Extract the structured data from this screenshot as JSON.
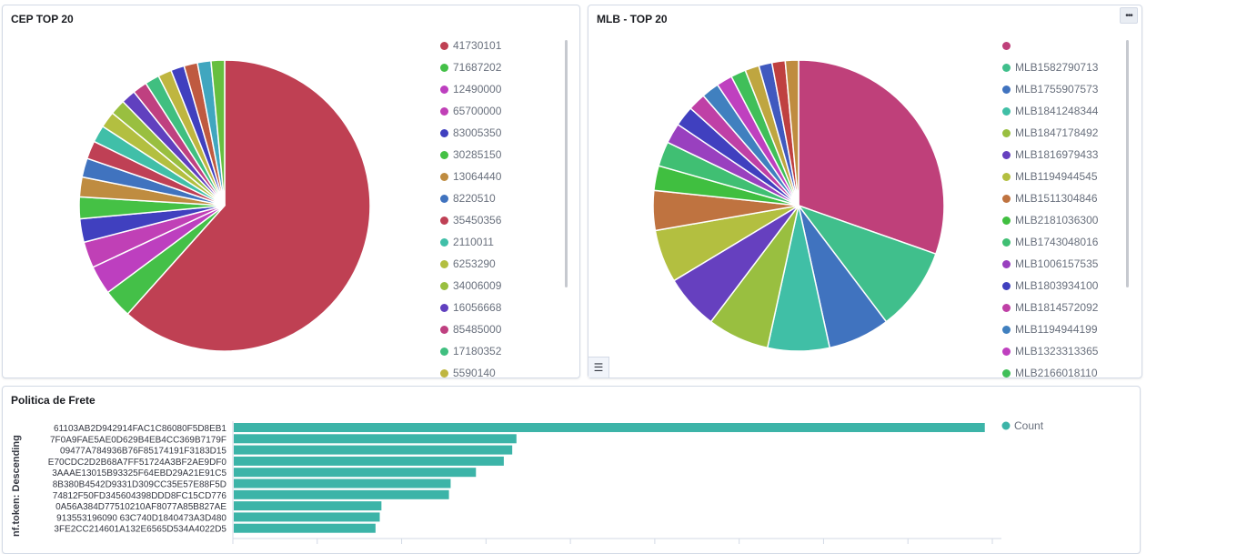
{
  "panels": {
    "cep": {
      "title": "CEP TOP 20",
      "legend": [
        {
          "label": "41730101",
          "color": "#bf4053"
        },
        {
          "label": "71687202",
          "color": "#44c048"
        },
        {
          "label": "12490000",
          "color": "#bd3fbf"
        },
        {
          "label": "65700000",
          "color": "#c040b6"
        },
        {
          "label": "83005350",
          "color": "#4040bf"
        },
        {
          "label": "30285150",
          "color": "#45c145"
        },
        {
          "label": "13064440",
          "color": "#bf8c40"
        },
        {
          "label": "8220510",
          "color": "#4073bf"
        },
        {
          "label": "35450356",
          "color": "#bf4055"
        },
        {
          "label": "2110011",
          "color": "#40bfa8"
        },
        {
          "label": "6253290",
          "color": "#b3bf40"
        },
        {
          "label": "34006009",
          "color": "#99bf40"
        },
        {
          "label": "16056668",
          "color": "#6040bf"
        },
        {
          "label": "85485000",
          "color": "#bf4080"
        },
        {
          "label": "17180352",
          "color": "#40bf80"
        },
        {
          "label": "5590140",
          "color": "#bfb640"
        }
      ],
      "slices": [
        {
          "value": 61.5,
          "color": "#bf4053"
        },
        {
          "value": 3.2,
          "color": "#44c048"
        },
        {
          "value": 3.2,
          "color": "#bd3fbf"
        },
        {
          "value": 2.9,
          "color": "#c040b6"
        },
        {
          "value": 2.6,
          "color": "#4040bf"
        },
        {
          "value": 2.4,
          "color": "#45c145"
        },
        {
          "value": 2.2,
          "color": "#bf8c40"
        },
        {
          "value": 2.1,
          "color": "#4073bf"
        },
        {
          "value": 2.0,
          "color": "#bf4055"
        },
        {
          "value": 1.9,
          "color": "#40bfa8"
        },
        {
          "value": 1.8,
          "color": "#b3bf40"
        },
        {
          "value": 1.7,
          "color": "#99bf40"
        },
        {
          "value": 1.6,
          "color": "#6040bf"
        },
        {
          "value": 1.6,
          "color": "#bf4080"
        },
        {
          "value": 1.6,
          "color": "#40bf80"
        },
        {
          "value": 1.5,
          "color": "#bfb640"
        },
        {
          "value": 1.5,
          "color": "#4040bf"
        },
        {
          "value": 1.5,
          "color": "#bf5a40"
        },
        {
          "value": 1.5,
          "color": "#40a6bf"
        },
        {
          "value": 1.5,
          "color": "#66bf40"
        }
      ]
    },
    "mlb": {
      "title": "MLB - TOP 20",
      "menu_icon": "ellipsis-icon",
      "legend_toggle_icon": "list-icon",
      "legend": [
        {
          "label": "",
          "color": "#bf407a"
        },
        {
          "label": "MLB1582790713",
          "color": "#40bf8c"
        },
        {
          "label": "MLB1755907573",
          "color": "#4073bf"
        },
        {
          "label": "MLB1841248344",
          "color": "#40bfa6"
        },
        {
          "label": "MLB1847178492",
          "color": "#99bf40"
        },
        {
          "label": "MLB1816979433",
          "color": "#6640bf"
        },
        {
          "label": "MLB1194944545",
          "color": "#b3bf40"
        },
        {
          "label": "MLB1511304846",
          "color": "#bf7340"
        },
        {
          "label": "MLB2181036300",
          "color": "#40bf40"
        },
        {
          "label": "MLB1743048016",
          "color": "#40bf73"
        },
        {
          "label": "MLB1006157535",
          "color": "#9940bf"
        },
        {
          "label": "MLB1803934100",
          "color": "#4040bf"
        },
        {
          "label": "MLB1814572092",
          "color": "#bf40a6"
        },
        {
          "label": "MLB1194944199",
          "color": "#4080bf"
        },
        {
          "label": "MLB1323313365",
          "color": "#bf40bf"
        },
        {
          "label": "MLB2166018110",
          "color": "#40bf59"
        }
      ],
      "slices": [
        {
          "value": 31.0,
          "color": "#bf407a"
        },
        {
          "value": 9.5,
          "color": "#40bf8c"
        },
        {
          "value": 7.0,
          "color": "#4073bf"
        },
        {
          "value": 7.0,
          "color": "#40bfa6"
        },
        {
          "value": 7.0,
          "color": "#99bf40"
        },
        {
          "value": 6.2,
          "color": "#6640bf"
        },
        {
          "value": 6.0,
          "color": "#b3bf40"
        },
        {
          "value": 4.5,
          "color": "#bf7340"
        },
        {
          "value": 2.8,
          "color": "#40bf40"
        },
        {
          "value": 2.8,
          "color": "#40bf73"
        },
        {
          "value": 2.3,
          "color": "#9940bf"
        },
        {
          "value": 2.3,
          "color": "#4040bf"
        },
        {
          "value": 2.0,
          "color": "#bf40a6"
        },
        {
          "value": 2.0,
          "color": "#4080bf"
        },
        {
          "value": 1.8,
          "color": "#bf40bf"
        },
        {
          "value": 1.7,
          "color": "#40bf59"
        },
        {
          "value": 1.6,
          "color": "#bfa640"
        },
        {
          "value": 1.5,
          "color": "#4059bf"
        },
        {
          "value": 1.5,
          "color": "#bf4040"
        },
        {
          "value": 1.5,
          "color": "#bf8c40"
        }
      ]
    },
    "frete": {
      "title": "Politica de Frete",
      "y_axis_label": "nf.token: Descending",
      "legend_label": "Count",
      "bar_color": "#3cb4a8",
      "chart_data": {
        "type": "bar",
        "orientation": "horizontal",
        "categories": [
          "61103AB2D942914FAC1C86080F5D8EB1",
          "7F0A9FAE5AE0D629B4EB4CC369B7179F",
          "09477A784936B76F85174191F3183D15",
          "E70CDC2D2B68A7FF51724A3BF2AE9DF0",
          "3AAAE13015B93325F64EBD29A21E91C5",
          "8B380B4542D9331D309CC35E57E88F5D",
          "74812F50FD345604398DDD8FC15CD776",
          "0A56A384D77510210AF8077A85B827AE",
          "913553196090 63C740D1840473A3D480",
          "3FE2CC214601A132E6565D534A4022D5"
        ],
        "series": [
          {
            "name": "Count",
            "values": [
              890,
              335,
              330,
              320,
              287,
              257,
              255,
              175,
              173,
              168
            ]
          }
        ],
        "xlim": [
          0,
          900
        ],
        "ylabel": "nf.token: Descending",
        "legend": "right",
        "grid": false
      }
    }
  }
}
